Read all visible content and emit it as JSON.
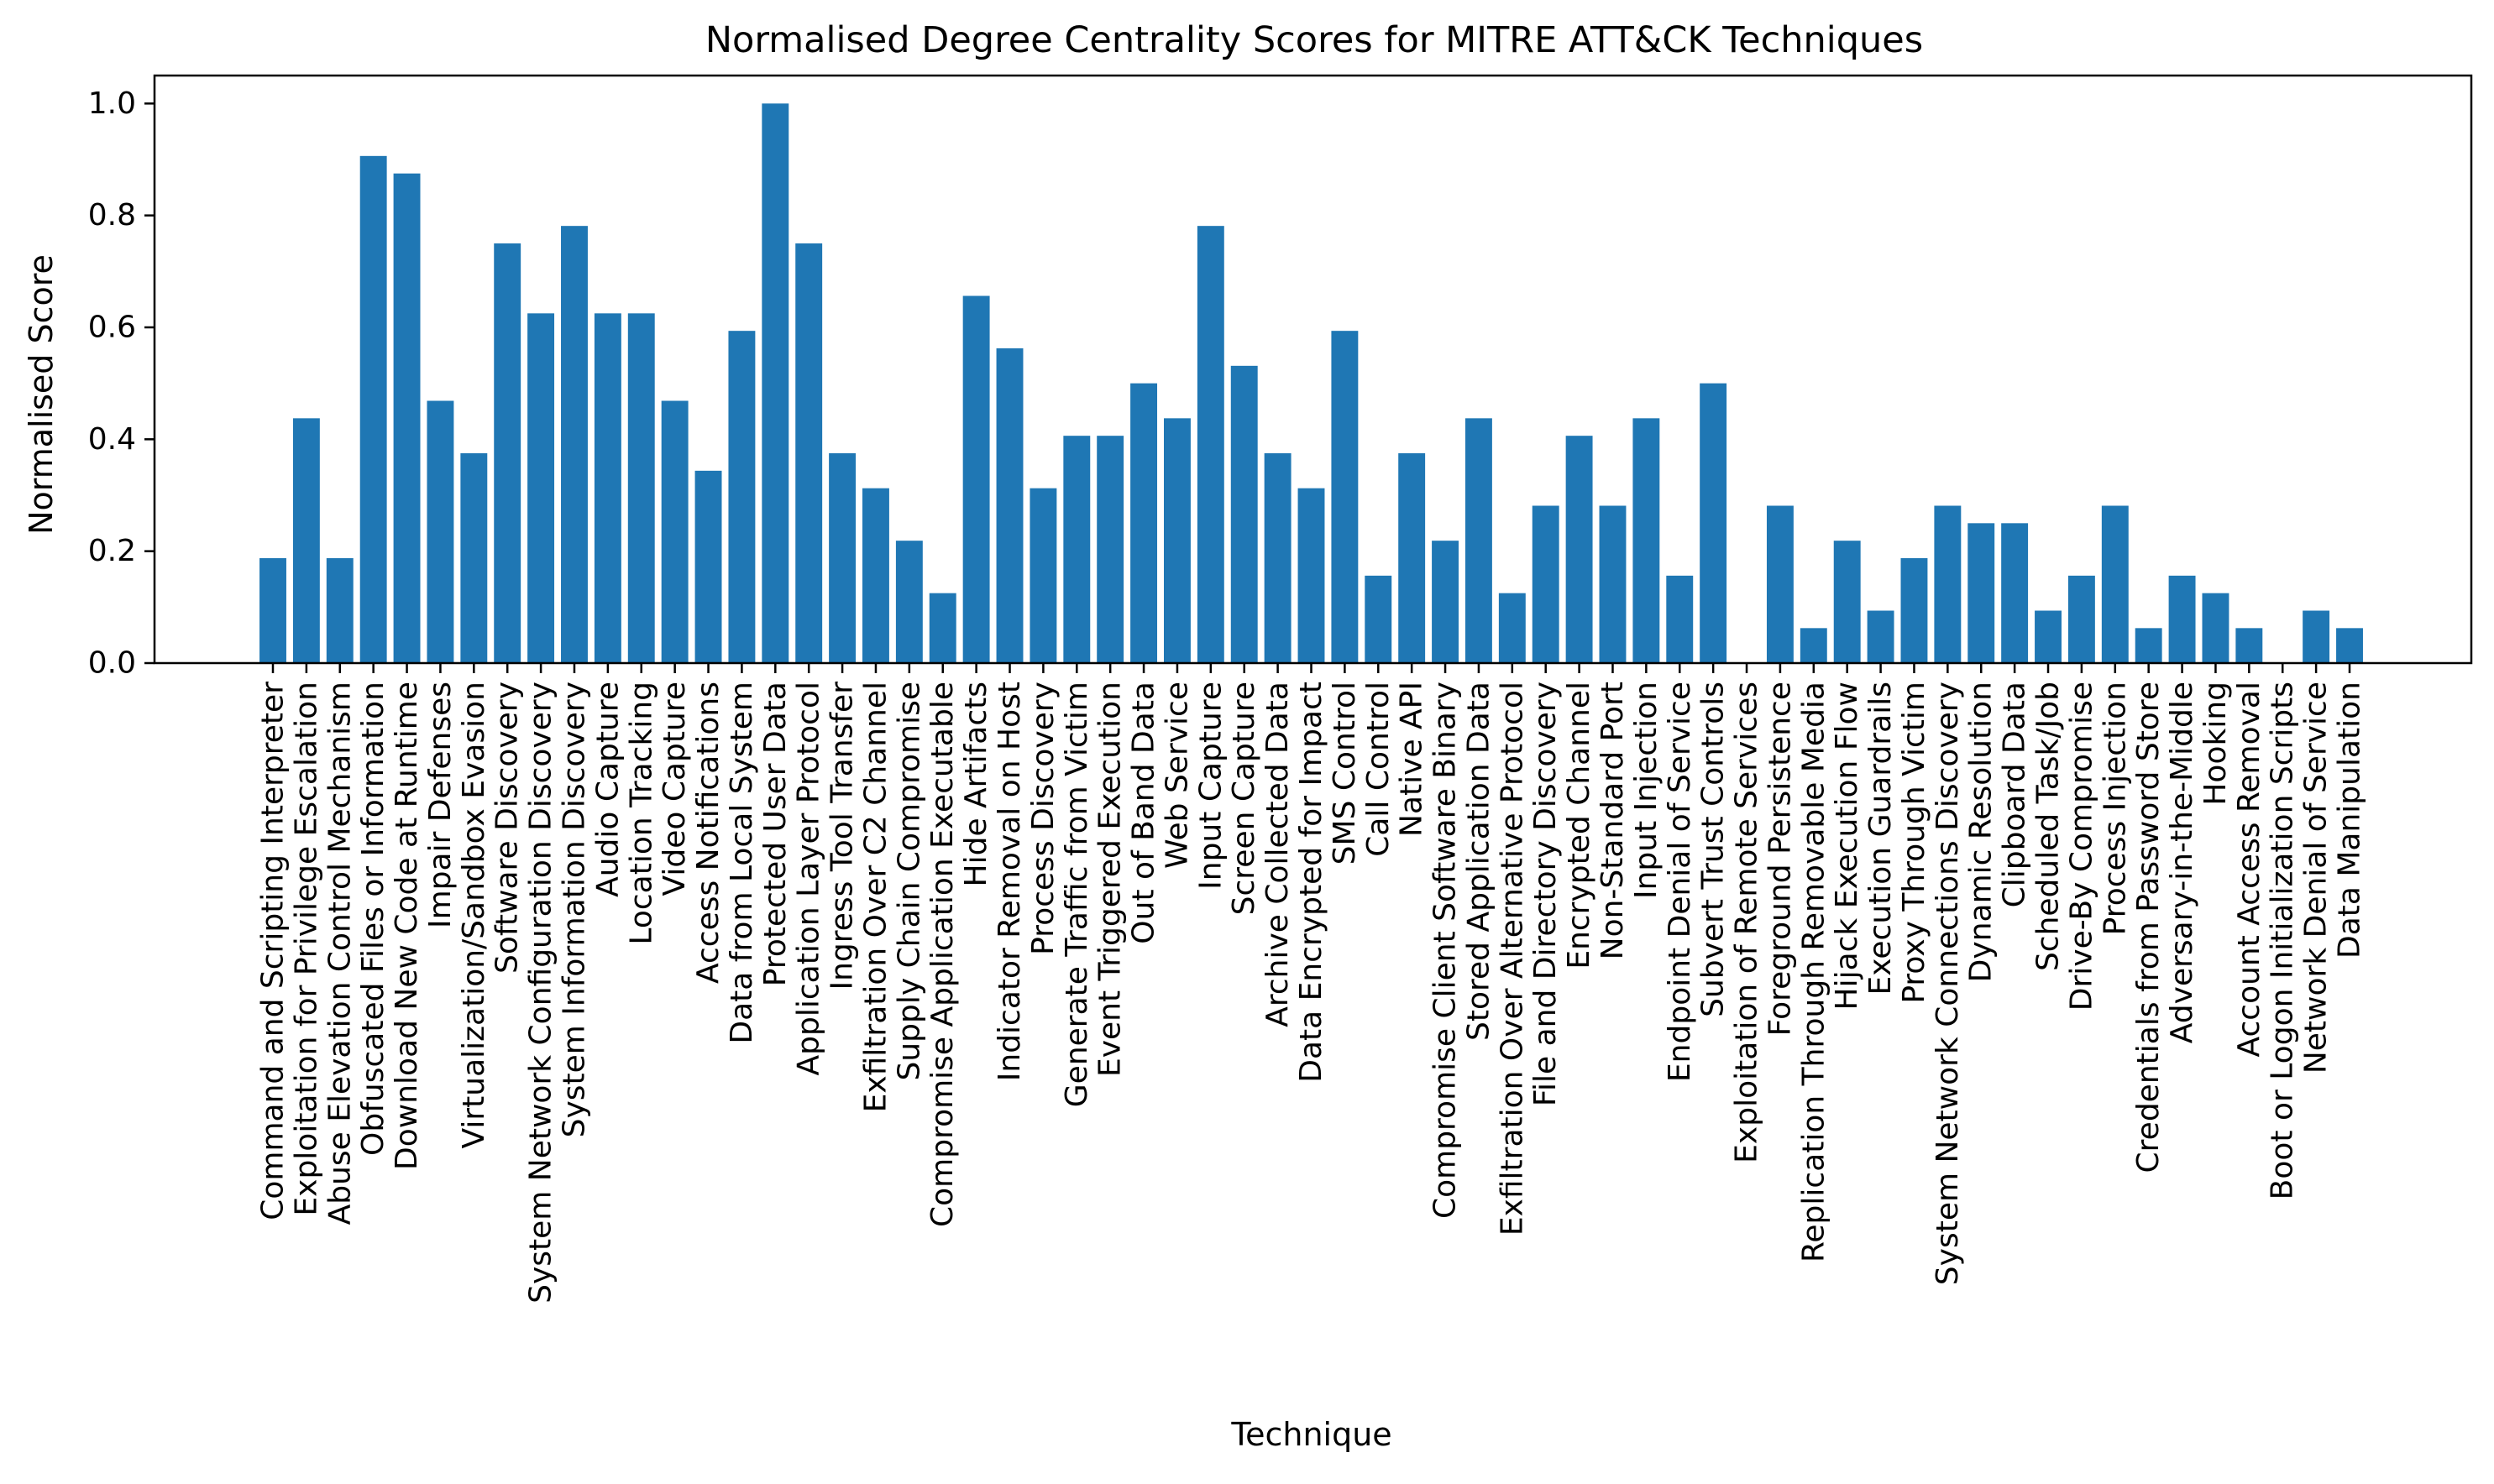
{
  "chart_data": {
    "type": "bar",
    "title": "Normalised Degree Centrality Scores for MITRE ATT&CK Techniques",
    "xlabel": "Technique",
    "ylabel": "Normalised Score",
    "ylim": [
      0,
      1.05
    ],
    "yticks": [
      0.0,
      0.2,
      0.4,
      0.6,
      0.8,
      1.0
    ],
    "ytick_labels": [
      "0.0",
      "0.2",
      "0.4",
      "0.6",
      "0.8",
      "1.0"
    ],
    "grid": false,
    "legend": "none",
    "bar_color": "#1f77b4",
    "categories": [
      "Command and Scripting Interpreter",
      "Exploitation for Privilege Escalation",
      "Abuse Elevation Control Mechanism",
      "Obfuscated Files or Information",
      "Download New Code at Runtime",
      "Impair Defenses",
      "Virtualization/Sandbox Evasion",
      "Software Discovery",
      "System Network Configuration Discovery",
      "System Information Discovery",
      "Audio Capture",
      "Location Tracking",
      "Video Capture",
      "Access Notifications",
      "Data from Local System",
      "Protected User Data",
      "Application Layer Protocol",
      "Ingress Tool Transfer",
      "Exfiltration Over C2 Channel",
      "Supply Chain Compromise",
      "Compromise Application Executable",
      "Hide Artifacts",
      "Indicator Removal on Host",
      "Process Discovery",
      "Generate Traffic from Victim",
      "Event Triggered Execution",
      "Out of Band Data",
      "Web Service",
      "Input Capture",
      "Screen Capture",
      "Archive Collected Data",
      "Data Encrypted for Impact",
      "SMS Control",
      "Call Control",
      "Native API",
      "Compromise Client Software Binary",
      "Stored Application Data",
      "Exfiltration Over Alternative Protocol",
      "File and Directory Discovery",
      "Encrypted Channel",
      "Non-Standard Port",
      "Input Injection",
      "Endpoint Denial of Service",
      "Subvert Trust Controls",
      "Exploitation of Remote Services",
      "Foreground Persistence",
      "Replication Through Removable Media",
      "Hijack Execution Flow",
      "Execution Guardrails",
      "Proxy Through Victim",
      "System Network Connections Discovery",
      "Dynamic Resolution",
      "Clipboard Data",
      "Scheduled Task/Job",
      "Drive-By Compromise",
      "Process Injection",
      "Credentials from Password Store",
      "Adversary-in-the-Middle",
      "Hooking",
      "Account Access Removal",
      "Boot or Logon Initialization Scripts",
      "Network Denial of Service",
      "Data Manipulation"
    ],
    "values": [
      0.1875,
      0.4375,
      0.1875,
      0.90625,
      0.875,
      0.46875,
      0.375,
      0.75,
      0.625,
      0.78125,
      0.625,
      0.625,
      0.46875,
      0.34375,
      0.59375,
      1.0,
      0.75,
      0.375,
      0.3125,
      0.21875,
      0.125,
      0.65625,
      0.5625,
      0.3125,
      0.40625,
      0.40625,
      0.5,
      0.4375,
      0.78125,
      0.53125,
      0.375,
      0.3125,
      0.59375,
      0.15625,
      0.375,
      0.21875,
      0.4375,
      0.125,
      0.28125,
      0.40625,
      0.28125,
      0.4375,
      0.15625,
      0.5,
      0.0,
      0.28125,
      0.0625,
      0.21875,
      0.09375,
      0.1875,
      0.28125,
      0.25,
      0.25,
      0.09375,
      0.15625,
      0.28125,
      0.0625,
      0.15625,
      0.125,
      0.0625,
      0.0,
      0.09375,
      0.0625
    ]
  }
}
